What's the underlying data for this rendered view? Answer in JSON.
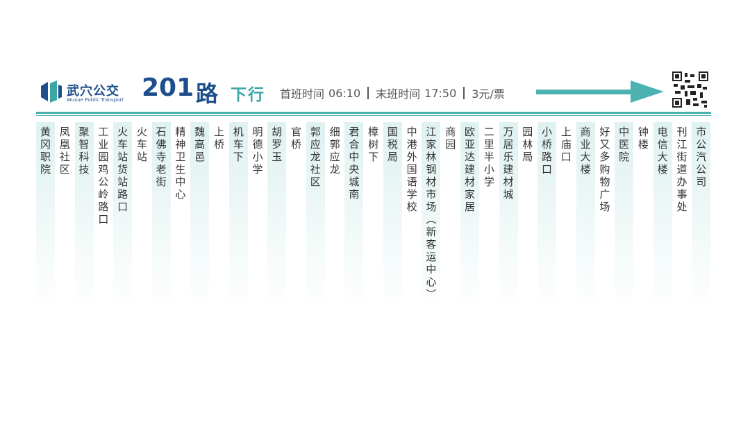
{
  "header": {
    "logo_name": "武穴公交",
    "logo_subtitle": "Wuxue Public Transport",
    "route_number": "201",
    "route_suffix": "路",
    "direction": "下行",
    "first_bus_label": "首班时间",
    "first_bus_time": "06:10",
    "last_bus_label": "末班时间",
    "last_bus_time": "17:50",
    "fare": "3元/票"
  },
  "stops": [
    "黄冈职院",
    "凤凰社区",
    "聚智科技",
    "工业园鸡公岭路口",
    "火车站货站路口",
    "火车站",
    "石佛寺老街",
    "精神卫生中心",
    "魏高邑",
    "上桥",
    "机车下",
    "明德小学",
    "胡罗玉",
    "官桥",
    "郭应龙社区",
    "细郭应龙",
    "君合中央城南",
    "樟树下",
    "国税局",
    "中港外国语学校",
    "江家林钢材市场（新客运中心）",
    "商园",
    "欧亚达建材家居",
    "二里半小学",
    "万居乐建材城",
    "园林局",
    "小桥路口",
    "上庙口",
    "商业大楼",
    "好又多购物广场",
    "中医院",
    "钟楼",
    "电信大楼",
    "刊江街道办事处",
    "市公汽公司"
  ]
}
